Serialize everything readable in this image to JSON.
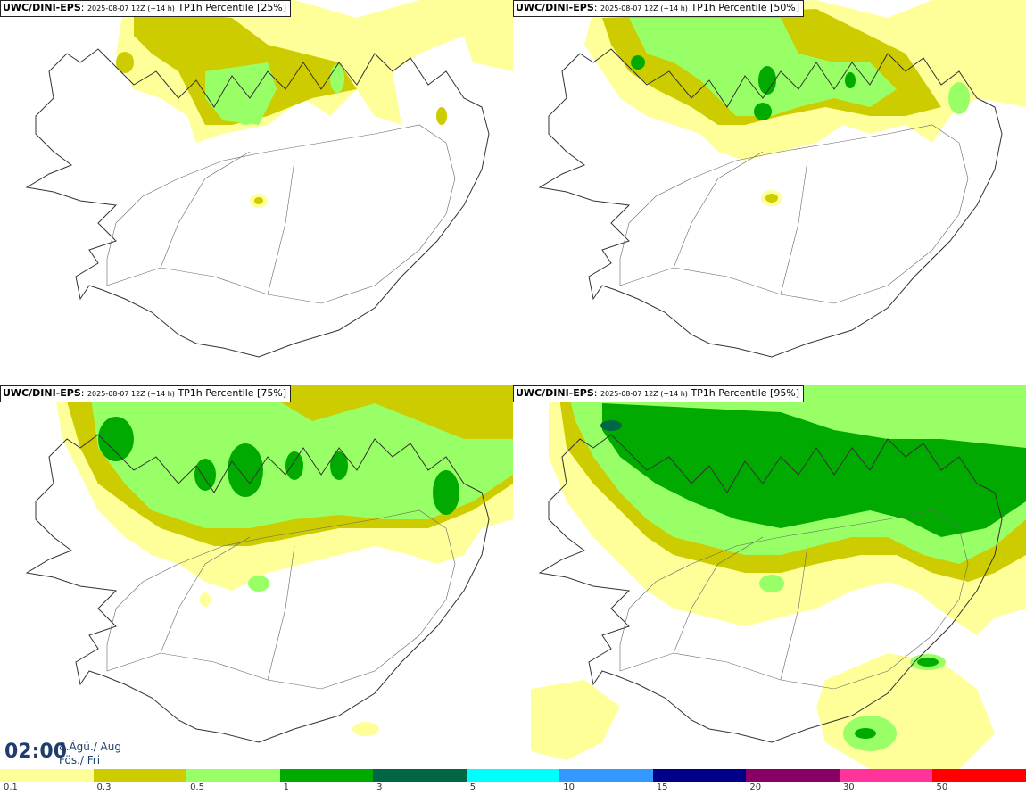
{
  "panels": [
    {
      "model": "UWC/DINI-EPS",
      "run": "2025-08-07 12Z (+14 h)",
      "product": "TP1h Percentile [25%]"
    },
    {
      "model": "UWC/DINI-EPS",
      "run": "2025-08-07 12Z (+14 h)",
      "product": "TP1h Percentile [50%]"
    },
    {
      "model": "UWC/DINI-EPS",
      "run": "2025-08-07 12Z (+14 h)",
      "product": "TP1h Percentile [75%]"
    },
    {
      "model": "UWC/DINI-EPS",
      "run": "2025-08-07 12Z (+14 h)",
      "product": "TP1h Percentile [95%]"
    }
  ],
  "valid_time": {
    "time": "02:00",
    "date_line1": "8.Ágú./ Aug",
    "date_line2": "Fös./ Fri"
  },
  "colorbar": {
    "colors": [
      "#ffff99",
      "#cccc00",
      "#99ff66",
      "#00aa00",
      "#006644",
      "#00ffff",
      "#3399ff",
      "#000088",
      "#880066",
      "#ff3399",
      "#ff0000"
    ],
    "tick_labels": [
      "0.1",
      "0.3",
      "0.5",
      "1",
      "3",
      "5",
      "10",
      "15",
      "20",
      "30",
      "50"
    ]
  },
  "map": {
    "land_outline_color": "#333333",
    "road_color": "#666666"
  }
}
